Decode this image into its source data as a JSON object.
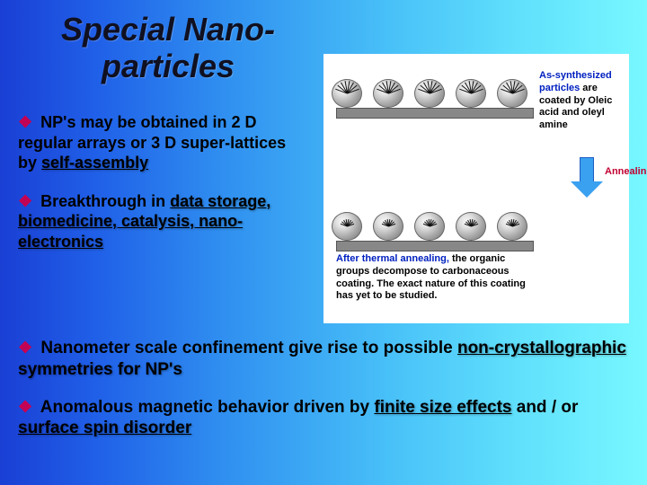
{
  "title": "Special Nano-particles",
  "bullets_left": [
    {
      "pre": "NP's may be obtained in 2 D regular arrays or 3 D super-lattices by ",
      "under": "self-assembly",
      "post": ""
    },
    {
      "pre": "Breakthrough in ",
      "under": "data storage, biomedicine, catalysis, nano-electronics",
      "post": ""
    }
  ],
  "bullets_bottom": [
    {
      "pre": "Nanometer scale confinement give rise to possible ",
      "under": "non-crystallographic",
      "post": " symmetries for NP's"
    },
    {
      "pre": "Anomalous magnetic behavior driven by ",
      "under": "finite size effects",
      "post": " and / or ",
      "under2": "surface spin disorder"
    }
  ],
  "figure": {
    "np_positions": [
      12,
      58,
      104,
      150,
      196
    ],
    "hair_angles": [
      -70,
      -50,
      -30,
      -10,
      10,
      30,
      50,
      70
    ],
    "label_top_pre": "As-synthesized particles",
    "label_top_post": " are coated by Oleic acid and oleyl amine",
    "arrow_label": "Annealing",
    "label_bot_pre": "After thermal annealing,",
    "label_bot_post": " the organic groups decompose to carbonaceous coating. The exact nature of this coating has yet to be studied.",
    "colors": {
      "arrow_fill": "#3aa0f0",
      "highlight_text": "#0020c0",
      "arrow_label": "#c00030",
      "substrate": "#888888"
    }
  },
  "style": {
    "diamond_color": "#c80050",
    "title_color": "#101020"
  }
}
